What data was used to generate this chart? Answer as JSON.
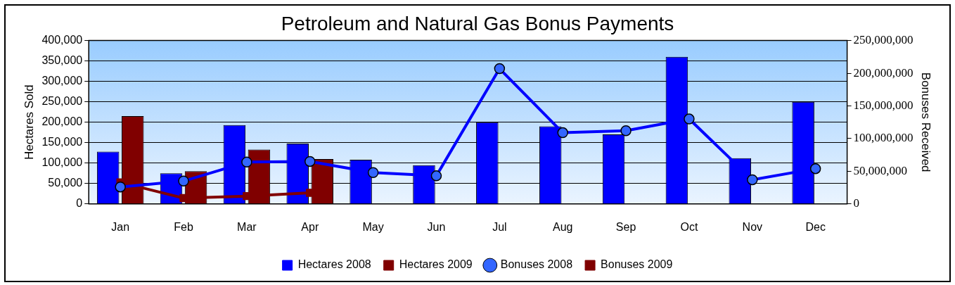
{
  "chart_data": {
    "type": "bar",
    "title": "Petroleum and Natural Gas Bonus Payments",
    "ylabel": "Hectares Sold",
    "y2label": "Bonuses Received",
    "categories": [
      "Jan",
      "Feb",
      "Mar",
      "Apr",
      "May",
      "Jun",
      "Jul",
      "Aug",
      "Sep",
      "Oct",
      "Nov",
      "Dec"
    ],
    "series": [
      {
        "name": "Hectares 2008",
        "color": "#0000ff",
        "values": [
          128000,
          75000,
          193000,
          148000,
          108000,
          95000,
          200000,
          190000,
          170000,
          360000,
          112000,
          250000
        ]
      },
      {
        "name": "Hectares 2009",
        "color": "#800000",
        "values": [
          215000,
          80000,
          133000,
          110000,
          null,
          null,
          null,
          null,
          null,
          null,
          null,
          null
        ]
      },
      {
        "name": "Bonuses 2008",
        "type": "line",
        "axis": "y2",
        "marker": "circle",
        "color": "#0000ff",
        "values": [
          26000000,
          35000000,
          64000000,
          65000000,
          48000000,
          43000000,
          207000000,
          109000000,
          112000000,
          130000000,
          37000000,
          54000000
        ]
      },
      {
        "name": "Bonuses 2009",
        "type": "line",
        "axis": "y2",
        "marker": "square",
        "color": "#800000",
        "values": [
          33000000,
          9000000,
          12000000,
          17000000,
          null,
          null,
          null,
          null,
          null,
          null,
          null,
          null
        ]
      }
    ],
    "ylim": [
      0,
      400000
    ],
    "yticks": [
      0,
      {
        "value": 50000,
        "label": "50,000"
      },
      {
        "value": 100000,
        "label": "100,000"
      },
      {
        "value": 150000,
        "label": "150,000"
      },
      {
        "value": 200000,
        "label": "200,000"
      },
      {
        "value": 250000,
        "label": "250,000"
      },
      {
        "value": 300000,
        "label": "300,000"
      },
      {
        "value": 350000,
        "label": "350,000"
      },
      {
        "value": 400000,
        "label": "400,000"
      }
    ],
    "y2lim": [
      0,
      250000000
    ],
    "y2ticks": [
      0,
      {
        "value": 50000000,
        "label": "50,000,000"
      },
      {
        "value": 100000000,
        "label": "100,000,000"
      },
      {
        "value": 150000000,
        "label": "150,000,000"
      },
      {
        "value": 200000000,
        "label": "200,000,000"
      },
      {
        "value": 250000000,
        "label": "250,000,000"
      }
    ],
    "grid": "y",
    "legend": "bottom"
  }
}
